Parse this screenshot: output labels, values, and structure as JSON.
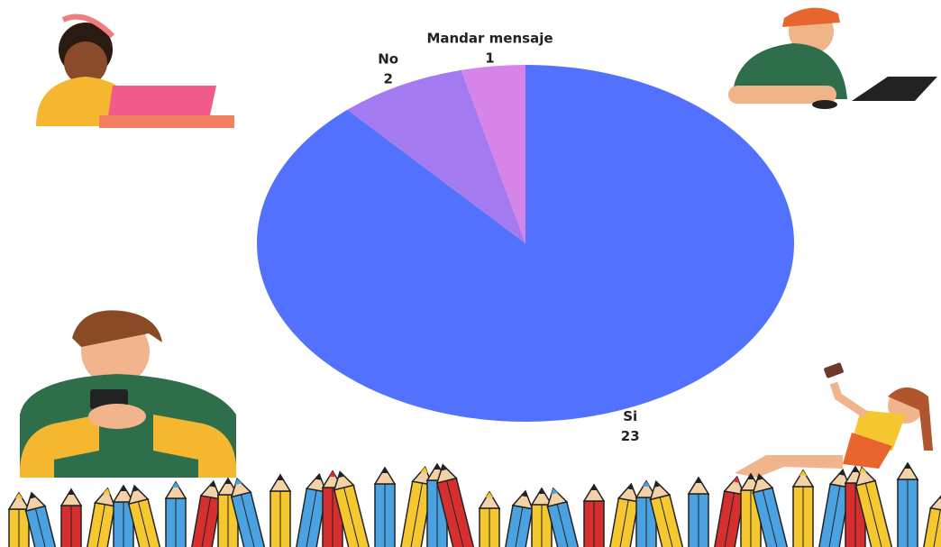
{
  "chart_data": {
    "type": "pie",
    "categories": [
      "Si",
      "No",
      "Mandar mensaje"
    ],
    "values": [
      23,
      2,
      1
    ],
    "colors": [
      "#5271ff",
      "#a47af0",
      "#d684e8"
    ],
    "start_angle": 0,
    "direction": "clockwise"
  }
}
